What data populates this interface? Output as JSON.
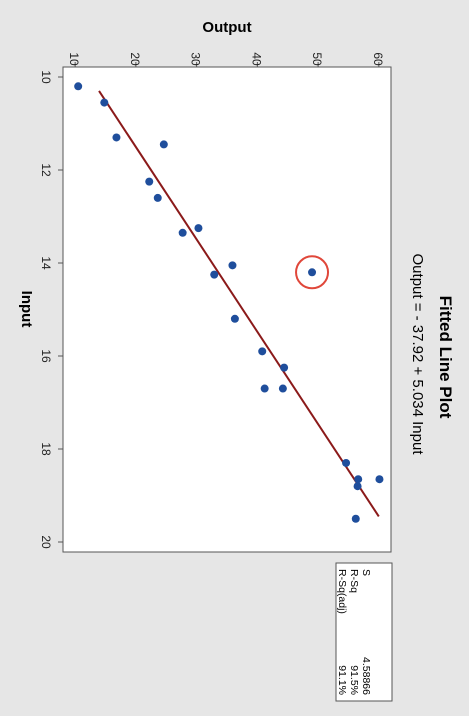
{
  "chart_data": {
    "type": "scatter",
    "orientation": "rotated 90 degrees clockwise",
    "title": "Fitted Line Plot",
    "subtitle": "Output = - 37.92 + 5.034 Input",
    "xlabel": "Input",
    "ylabel": "Output",
    "xlim": [
      10,
      20
    ],
    "ylim": [
      8,
      62
    ],
    "x_ticks": [
      10,
      12,
      14,
      16,
      18,
      20
    ],
    "y_ticks": [
      10,
      20,
      30,
      40,
      50,
      60
    ],
    "grid": false,
    "legend": "none",
    "points": [
      {
        "x": 10.2,
        "y": 10.5
      },
      {
        "x": 10.55,
        "y": 14.8
      },
      {
        "x": 11.3,
        "y": 16.8
      },
      {
        "x": 11.45,
        "y": 24.6
      },
      {
        "x": 12.25,
        "y": 22.2
      },
      {
        "x": 12.6,
        "y": 23.6
      },
      {
        "x": 13.25,
        "y": 30.3
      },
      {
        "x": 13.35,
        "y": 27.7
      },
      {
        "x": 14.05,
        "y": 35.9
      },
      {
        "x": 14.2,
        "y": 49.0
      },
      {
        "x": 14.25,
        "y": 32.9
      },
      {
        "x": 15.2,
        "y": 36.3
      },
      {
        "x": 15.9,
        "y": 40.8
      },
      {
        "x": 16.25,
        "y": 44.4
      },
      {
        "x": 16.7,
        "y": 41.2
      },
      {
        "x": 16.7,
        "y": 44.2
      },
      {
        "x": 18.3,
        "y": 54.6
      },
      {
        "x": 18.65,
        "y": 56.6
      },
      {
        "x": 18.65,
        "y": 60.1
      },
      {
        "x": 18.8,
        "y": 56.5
      },
      {
        "x": 19.5,
        "y": 56.2
      }
    ],
    "highlighted_point": {
      "x": 14.2,
      "y": 49.0
    },
    "fit_line": {
      "intercept": -37.92,
      "slope": 5.034,
      "x_range": [
        10.3,
        19.45
      ]
    },
    "colors": {
      "points": "#1f4e9c",
      "fit_line": "#8b1a1a",
      "highlight": "#e0473a",
      "background": "#e6e6e6",
      "plot_area": "#ffffff"
    },
    "stats": [
      {
        "label": "S",
        "value": "4.58866"
      },
      {
        "label": "R-Sq",
        "value": "91.5%"
      },
      {
        "label": "R-Sq(adj)",
        "value": "91.1%"
      }
    ]
  }
}
